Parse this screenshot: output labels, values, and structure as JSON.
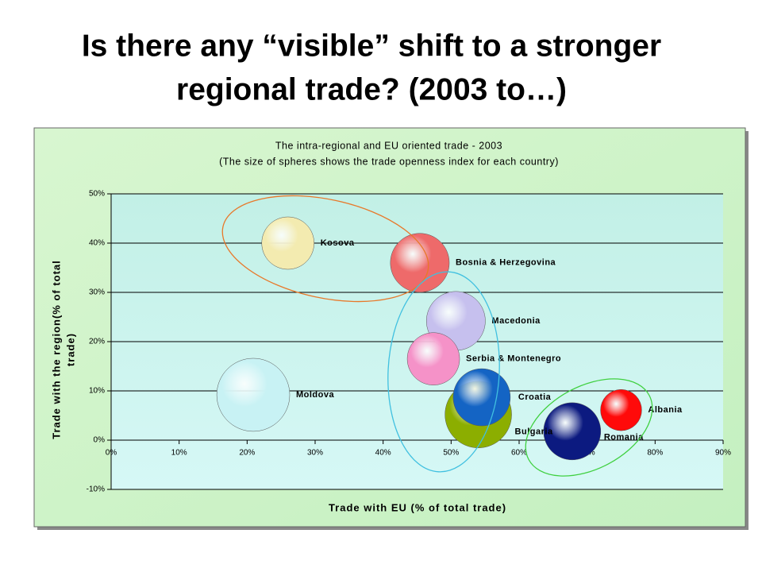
{
  "slide_title": [
    "Is there any “visible” shift to a stronger",
    "regional trade? (2003 to…)"
  ],
  "chart_data": {
    "type": "bubble",
    "title": [
      "The intra-regional and EU oriented trade - 2003",
      "(The size of spheres shows the trade openness index for each country)"
    ],
    "x_label": "Trade with EU (% of total trade)",
    "y_label": [
      "Trade with the region(% of total",
      "trade)"
    ],
    "xlim": [
      0,
      90
    ],
    "ylim": [
      -10,
      50
    ],
    "xticks": [
      {
        "value": 0,
        "label": "0%"
      },
      {
        "value": 10,
        "label": "10%"
      },
      {
        "value": 20,
        "label": "20%"
      },
      {
        "value": 30,
        "label": "30%"
      },
      {
        "value": 40,
        "label": "40%"
      },
      {
        "value": 50,
        "label": "50%"
      },
      {
        "value": 60,
        "label": "60%"
      },
      {
        "value": 70,
        "label": "70%"
      },
      {
        "value": 80,
        "label": "80%"
      },
      {
        "value": 90,
        "label": "90%"
      }
    ],
    "yticks": [
      {
        "value": -10,
        "label": "-10%"
      },
      {
        "value": 0,
        "label": "0%"
      },
      {
        "value": 10,
        "label": "10%"
      },
      {
        "value": 20,
        "label": "20%"
      },
      {
        "value": 30,
        "label": "30%"
      },
      {
        "value": 40,
        "label": "40%"
      },
      {
        "value": 50,
        "label": "50%"
      }
    ],
    "grid": true,
    "series": [
      {
        "name": "Kosova",
        "color": "#f3ebb0",
        "x": 26,
        "y": 40,
        "size": 68
      },
      {
        "name": "Bosnia & Herzegovina",
        "color": "#ee6a6a",
        "x": 45.4,
        "y": 36,
        "size": 86
      },
      {
        "name": "Macedonia",
        "color": "#c6c0ee",
        "x": 50.7,
        "y": 24.2,
        "size": 86
      },
      {
        "name": "Serbia & Montenegro",
        "color": "#f592c8",
        "x": 47.4,
        "y": 16.5,
        "size": 68
      },
      {
        "name": "Moldova",
        "color": "#c8f2f4",
        "x": 20.9,
        "y": 9.2,
        "size": 132
      },
      {
        "name": "Bulgaria",
        "color": "#8cae00",
        "x": 54,
        "y": 5.2,
        "size": 110
      },
      {
        "name": "Croatia",
        "color": "#1464c4",
        "x": 54.5,
        "y": 8.7,
        "size": 81
      },
      {
        "name": "Romania",
        "color": "#0c1a80",
        "x": 67.8,
        "y": 1.8,
        "size": 81
      },
      {
        "name": "Albania",
        "color": "#ff0a0a",
        "x": 75,
        "y": 6.1,
        "size": 42
      }
    ]
  }
}
